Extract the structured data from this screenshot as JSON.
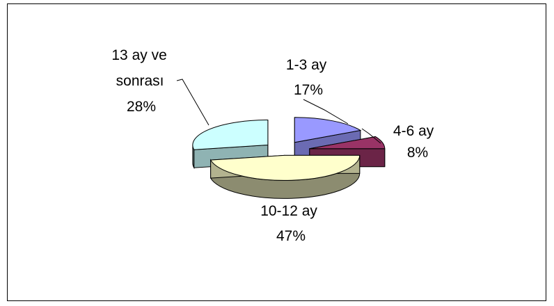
{
  "chart_data": {
    "type": "pie",
    "style": "3d-exploded",
    "title": "",
    "legend": "none",
    "slices": [
      {
        "label_lines": [
          "1-3 ay"
        ],
        "percent_label": "17%",
        "value": 17,
        "color": "#9999ff"
      },
      {
        "label_lines": [
          "4-6 ay"
        ],
        "percent_label": "8%",
        "value": 8,
        "color": "#993366"
      },
      {
        "label_lines": [
          "10-12 ay"
        ],
        "percent_label": "47%",
        "value": 47,
        "color": "#ffffcc"
      },
      {
        "label_lines": [
          "13 ay ve",
          "sonrası"
        ],
        "percent_label": "28%",
        "value": 28,
        "color": "#ccffff"
      }
    ]
  }
}
